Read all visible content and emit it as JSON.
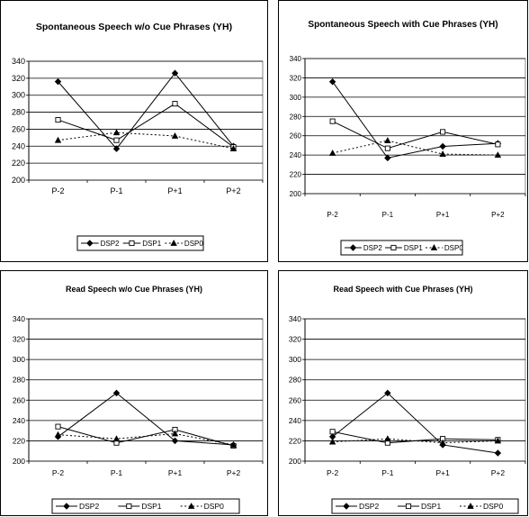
{
  "series_styles": {
    "DSP2": {
      "marker": "diamond",
      "dash": "",
      "color": "#000000"
    },
    "DSP1": {
      "marker": "square",
      "dash": "",
      "color": "#000000"
    },
    "DSP0": {
      "marker": "triangle",
      "dash": "2,2.5",
      "color": "#000000"
    }
  },
  "chart_data": [
    {
      "type": "line",
      "title": "Spontaneous Speech w/o Cue Phrases (YH)",
      "categories": [
        "P-2",
        "P-1",
        "P+1",
        "P+2"
      ],
      "ylim": [
        200,
        340
      ],
      "yticks": [
        200,
        220,
        240,
        260,
        280,
        300,
        320,
        340
      ],
      "grid": true,
      "legend": "bottom",
      "series": [
        {
          "name": "DSP2",
          "values": [
            316,
            237,
            326,
            240
          ]
        },
        {
          "name": "DSP1",
          "values": [
            271,
            247,
            290,
            239
          ]
        },
        {
          "name": "DSP0",
          "values": [
            247,
            256,
            252,
            237
          ]
        }
      ]
    },
    {
      "type": "line",
      "title": "Spontaneous Speech with Cue Phrases (YH)",
      "categories": [
        "P-2",
        "P-1",
        "P+1",
        "P+2"
      ],
      "ylim": [
        200,
        340
      ],
      "yticks": [
        200,
        220,
        240,
        260,
        280,
        300,
        320,
        340
      ],
      "grid": true,
      "legend": "bottom",
      "series": [
        {
          "name": "DSP2",
          "values": [
            316,
            237,
            249,
            252
          ]
        },
        {
          "name": "DSP1",
          "values": [
            275,
            247,
            264,
            251
          ]
        },
        {
          "name": "DSP0",
          "values": [
            242,
            255,
            241,
            240
          ]
        }
      ]
    },
    {
      "type": "line",
      "title": "Read Speech w/o Cue Phrases (YH)",
      "categories": [
        "P-2",
        "P-1",
        "P+1",
        "P+2"
      ],
      "ylim": [
        200,
        340
      ],
      "yticks": [
        200,
        220,
        240,
        260,
        280,
        300,
        320,
        340
      ],
      "grid": true,
      "legend": "bottom",
      "series": [
        {
          "name": "DSP2",
          "values": [
            224,
            267,
            220,
            216
          ]
        },
        {
          "name": "DSP1",
          "values": [
            234,
            218,
            231,
            215
          ]
        },
        {
          "name": "DSP0",
          "values": [
            226,
            222,
            227,
            216
          ]
        }
      ]
    },
    {
      "type": "line",
      "title": "Read Speech with Cue Phrases (YH)",
      "categories": [
        "P-2",
        "P-1",
        "P+1",
        "P+2"
      ],
      "ylim": [
        200,
        340
      ],
      "yticks": [
        200,
        220,
        240,
        260,
        280,
        300,
        320,
        340
      ],
      "grid": true,
      "legend": "bottom",
      "series": [
        {
          "name": "DSP2",
          "values": [
            224,
            267,
            216,
            208
          ]
        },
        {
          "name": "DSP1",
          "values": [
            229,
            218,
            222,
            221
          ]
        },
        {
          "name": "DSP0",
          "values": [
            219,
            222,
            218,
            220
          ]
        }
      ]
    }
  ]
}
